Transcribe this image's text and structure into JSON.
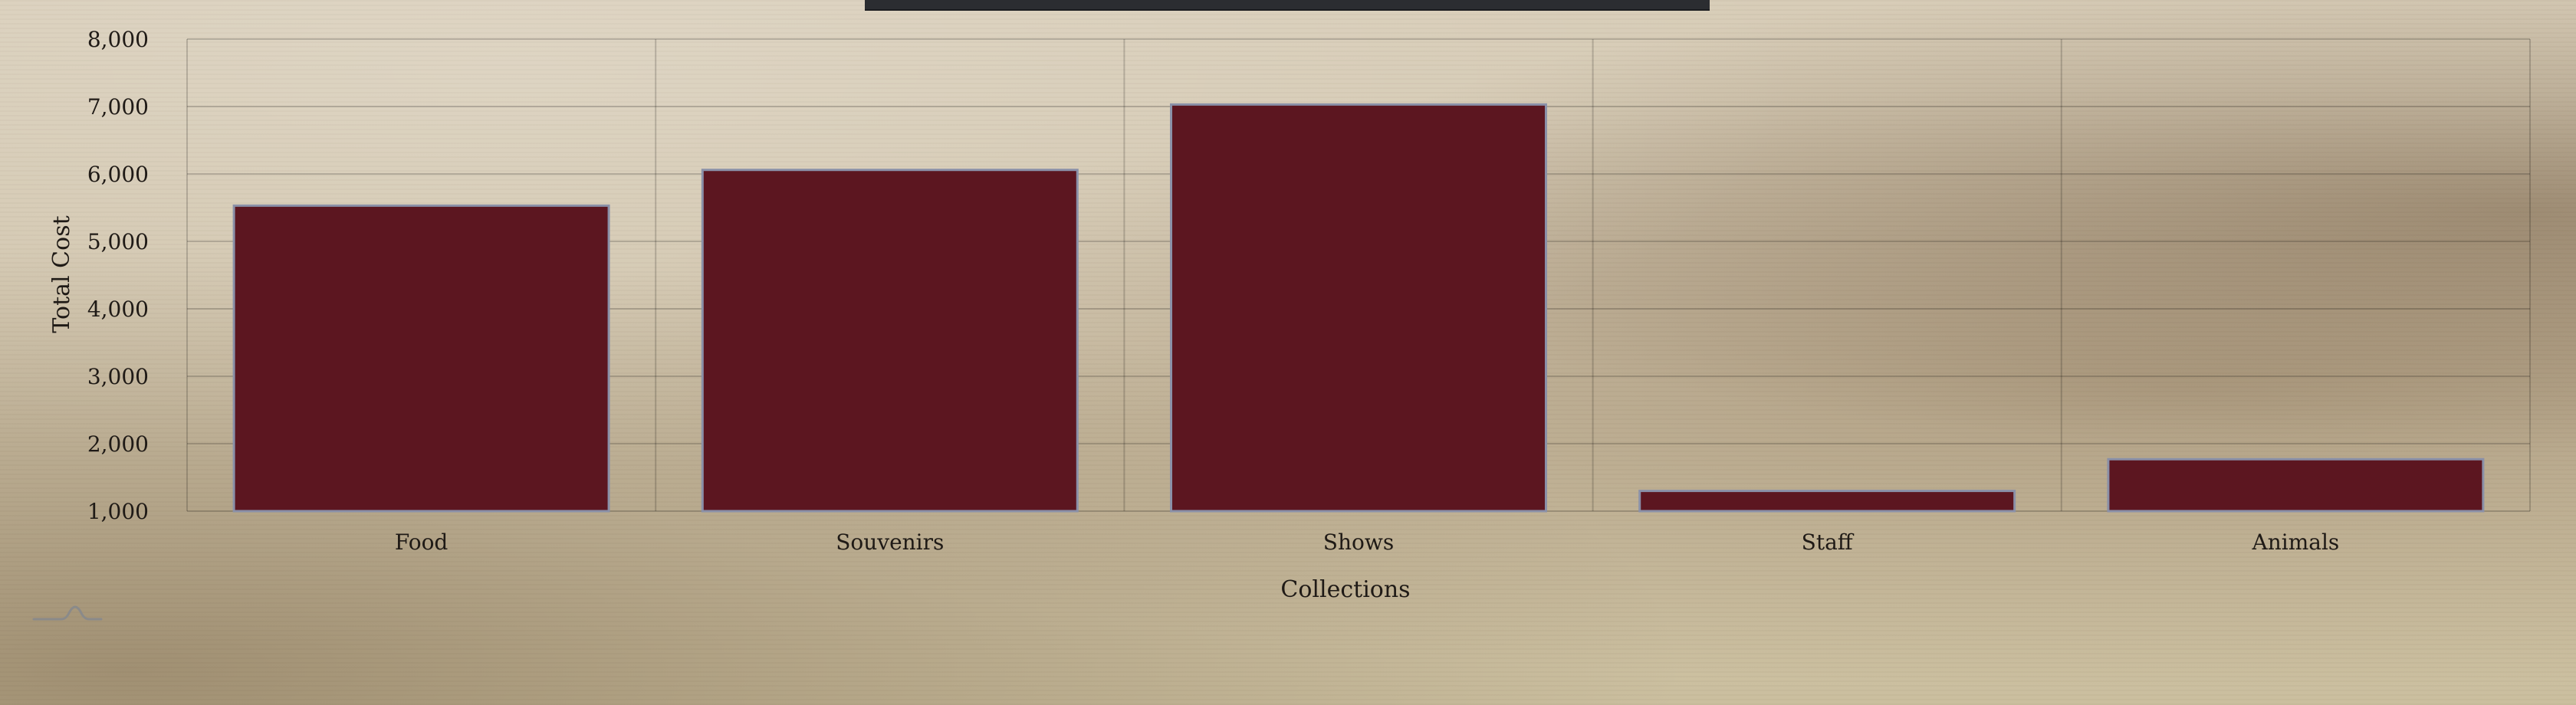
{
  "chart_data": {
    "type": "bar",
    "categories": [
      "Food",
      "Souvenirs",
      "Shows",
      "Staff",
      "Animals"
    ],
    "values": [
      5530,
      6060,
      7030,
      1300,
      1770
    ],
    "xlabel": "Collections",
    "ylabel": "Total Cost",
    "ylim": [
      1000,
      8000
    ],
    "yticks": [
      1000,
      2000,
      3000,
      4000,
      5000,
      6000,
      7000,
      8000
    ],
    "ytick_labels": [
      "1,000",
      "2,000",
      "3,000",
      "4,000",
      "5,000",
      "6,000",
      "7,000",
      "8,000"
    ],
    "grid": true,
    "colors": {
      "bar_fill": "#5c1620",
      "bar_stroke": "#8a90a8",
      "banner": "#2b2d31"
    }
  },
  "controls": {
    "reset_zoom_icon": "reset-zoom-icon"
  }
}
